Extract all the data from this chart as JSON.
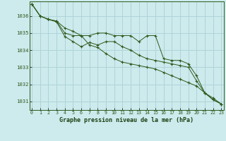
{
  "title": "Graphe pression niveau de la mer (hPa)",
  "bg_color": "#cdeaed",
  "grid_color": "#aed4d8",
  "line_color": "#2d5a1b",
  "marker_color": "#2d5a1b",
  "xlabel_color": "#1a4010",
  "ylabel_color": "#2d5a1b",
  "series": [
    [
      1036.7,
      1036.0,
      1035.8,
      1035.7,
      1035.0,
      1034.85,
      1034.85,
      1034.85,
      1035.0,
      1035.0,
      1034.85,
      1034.85,
      1034.85,
      1034.5,
      1034.85,
      1034.85,
      1033.5,
      1033.4,
      1033.4,
      1033.2,
      1032.5,
      1031.5,
      1031.2,
      1030.85
    ],
    [
      1036.7,
      1036.0,
      1035.8,
      1035.7,
      1035.3,
      1035.1,
      1034.85,
      1034.3,
      1034.15,
      1033.8,
      1033.5,
      1033.3,
      1033.2,
      1033.1,
      1033.0,
      1032.9,
      1032.7,
      1032.5,
      1032.3,
      1032.1,
      1031.9,
      1031.5,
      1031.1,
      1030.85
    ],
    [
      1036.7,
      1036.0,
      1035.8,
      1035.65,
      1034.8,
      1034.5,
      1034.2,
      1034.45,
      1034.3,
      1034.5,
      1034.5,
      1034.2,
      1034.0,
      1033.7,
      1033.5,
      1033.4,
      1033.3,
      1033.2,
      1033.1,
      1033.0,
      1032.2,
      1031.5,
      1031.1,
      1030.85
    ]
  ],
  "ylim": [
    1030.5,
    1036.85
  ],
  "yticks": [
    1031,
    1032,
    1033,
    1034,
    1035,
    1036
  ],
  "xlim": [
    -0.3,
    23.3
  ],
  "xticks": [
    0,
    1,
    2,
    3,
    4,
    5,
    6,
    7,
    8,
    9,
    10,
    11,
    12,
    13,
    14,
    15,
    16,
    17,
    18,
    19,
    20,
    21,
    22,
    23
  ]
}
